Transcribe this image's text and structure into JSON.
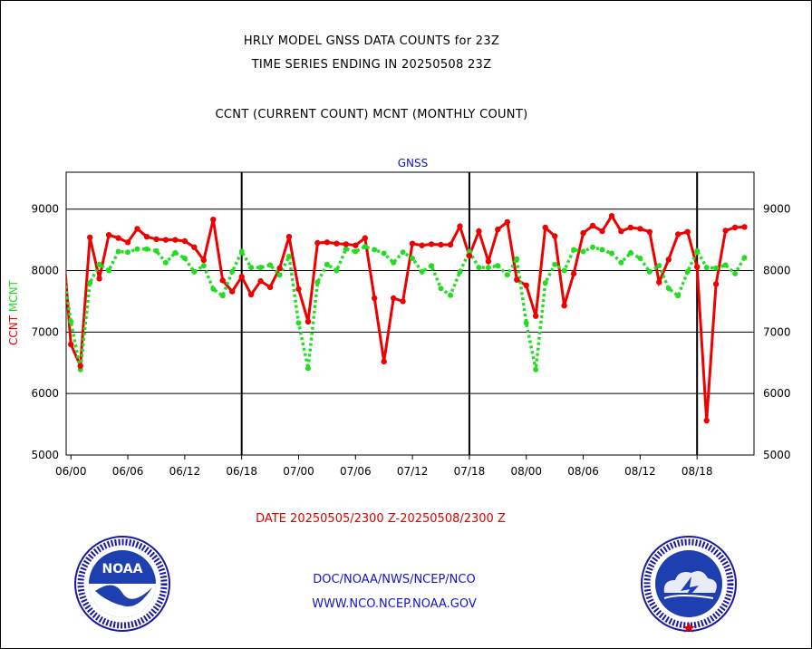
{
  "titles": {
    "line1": "HRLY MODEL GNSS DATA COUNTS for 23Z",
    "line2": "TIME SERIES ENDING IN 20250508 23Z",
    "line3": "CCNT (CURRENT COUNT) MCNT (MONTHLY COUNT)"
  },
  "footer": {
    "date_range": "DATE 20250505/2300 Z-20250508/2300 Z",
    "link1": "DOC/NOAA/NWS/NCEP/NCO",
    "link2": "WWW.NCO.NCEP.NOAA.GOV"
  },
  "logos": {
    "left": {
      "name": "noaa-logo",
      "text": "NOAA",
      "ring_text": "NATIONAL OCEANIC AND ATMOSPHERIC ADMINISTRATION · U.S. DEPARTMENT OF COMMERCE"
    },
    "right": {
      "name": "nws-logo",
      "ring_text": "NATIONAL WEATHER SERVICE"
    }
  },
  "colors": {
    "ccnt": "#ee0000",
    "mcnt": "#22dd22",
    "panel_title": "#1414c8",
    "grid": "#000000"
  },
  "chart_data": {
    "type": "line",
    "panel_title": "GNSS",
    "ylabel_left_1": "CCNT",
    "ylabel_left_2": "MCNT",
    "ylim": [
      5000,
      9600
    ],
    "yticks": [
      5000,
      6000,
      7000,
      8000,
      9000
    ],
    "xlim": [
      -0.5,
      72
    ],
    "xticks": [
      {
        "x": 0,
        "label": "06/00"
      },
      {
        "x": 6,
        "label": "06/06"
      },
      {
        "x": 12,
        "label": "06/12"
      },
      {
        "x": 18,
        "label": "06/18"
      },
      {
        "x": 24,
        "label": "07/00"
      },
      {
        "x": 30,
        "label": "07/06"
      },
      {
        "x": 36,
        "label": "07/12"
      },
      {
        "x": 42,
        "label": "07/18"
      },
      {
        "x": 48,
        "label": "08/00"
      },
      {
        "x": 54,
        "label": "08/06"
      },
      {
        "x": 60,
        "label": "08/12"
      },
      {
        "x": 66,
        "label": "08/18"
      }
    ],
    "day_dividers": [
      18,
      42,
      66
    ],
    "grid": true,
    "series": [
      {
        "name": "CCNT",
        "style": "solid",
        "x": [
          -1,
          0,
          1,
          2,
          3,
          4,
          5,
          6,
          7,
          8,
          9,
          10,
          11,
          12,
          13,
          14,
          15,
          16,
          17,
          18,
          19,
          20,
          21,
          22,
          23,
          24,
          25,
          26,
          27,
          28,
          29,
          30,
          31,
          32,
          33,
          34,
          35,
          36,
          37,
          38,
          39,
          40,
          41,
          42,
          43,
          44,
          45,
          46,
          47,
          48,
          49,
          50,
          51,
          52,
          53,
          54,
          55,
          56,
          57,
          58,
          59,
          60,
          61,
          62,
          63,
          64,
          65,
          66,
          67,
          68,
          69,
          70,
          71
        ],
        "values": [
          8790,
          6800,
          6450,
          8540,
          7870,
          8580,
          8530,
          8460,
          8680,
          8550,
          8510,
          8500,
          8500,
          8480,
          8380,
          8170,
          8830,
          7840,
          7660,
          7900,
          7610,
          7830,
          7730,
          8040,
          8550,
          7700,
          7170,
          8450,
          8460,
          8440,
          8430,
          8410,
          8530,
          7550,
          6520,
          7550,
          7500,
          8440,
          8410,
          8430,
          8420,
          8420,
          8720,
          8240,
          8640,
          8150,
          8670,
          8790,
          7850,
          7760,
          7260,
          8700,
          8560,
          7430,
          7950,
          8610,
          8730,
          8640,
          8890,
          8640,
          8700,
          8680,
          8630,
          7810,
          8180,
          8590,
          8630,
          8060,
          5560,
          7780,
          8650,
          8700,
          8710
        ]
      },
      {
        "name": "MCNT",
        "style": "dotted",
        "x": [
          -1,
          0,
          1,
          2,
          3,
          4,
          5,
          6,
          7,
          8,
          9,
          10,
          11,
          12,
          13,
          14,
          15,
          16,
          17,
          18,
          19,
          20,
          21,
          22,
          23,
          24,
          25,
          26,
          27,
          28,
          29,
          30,
          31,
          32,
          33,
          34,
          35,
          36,
          37,
          38,
          39,
          40,
          41,
          42,
          43,
          44,
          45,
          46,
          47,
          48,
          49,
          50,
          51,
          52,
          53,
          54,
          55,
          56,
          57,
          58,
          59,
          60,
          61,
          62,
          63,
          64,
          65,
          66,
          67,
          68,
          69,
          70,
          71
        ],
        "values": [
          8190,
          7170,
          6390,
          7800,
          8100,
          8000,
          8310,
          8300,
          8350,
          8350,
          8320,
          8130,
          8290,
          8200,
          7980,
          8080,
          7700,
          7590,
          7980,
          8310,
          8050,
          8050,
          8090,
          7930,
          8230,
          7150,
          6410,
          7810,
          8100,
          8000,
          8350,
          8310,
          8390,
          8340,
          8280,
          8130,
          8300,
          8200,
          7980,
          8080,
          7710,
          7600,
          7980,
          8310,
          8050,
          8050,
          8080,
          7930,
          8190,
          7150,
          6390,
          7800,
          8100,
          8000,
          8340,
          8310,
          8380,
          8340,
          8280,
          8130,
          8290,
          8200,
          7980,
          8080,
          7710,
          7590,
          7980,
          8320,
          8050,
          8040,
          8090,
          7950,
          8210
        ]
      }
    ]
  }
}
